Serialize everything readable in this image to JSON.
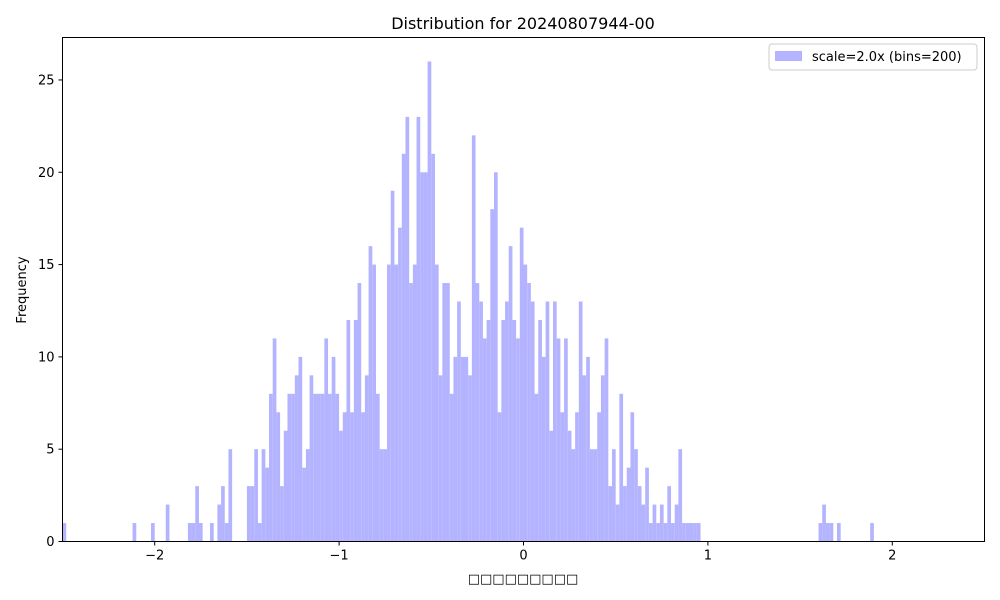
{
  "chart_data": {
    "type": "bar",
    "title": "Distribution for 20240807944-00",
    "xlabel": "□□□□□□□□□",
    "ylabel": "Frequency",
    "xlim": [
      -2.5,
      2.5
    ],
    "ylim": [
      0,
      27.3
    ],
    "x_ticks": [
      -2,
      -1,
      0,
      1,
      2
    ],
    "x_tick_labels": [
      "−2",
      "−1",
      "0",
      "1",
      "2"
    ],
    "y_ticks": [
      0,
      5,
      10,
      15,
      20,
      25
    ],
    "y_tick_labels": [
      "0",
      "5",
      "10",
      "15",
      "20",
      "25"
    ],
    "bar_color": "#b3b3ff",
    "grid": false,
    "legend_position": "top-right",
    "series": [
      {
        "name": "scale=2.0x (bins=200)",
        "bin_width": 0.02,
        "bins": [
          [
            -2.5,
            1
          ],
          [
            -2.12,
            1
          ],
          [
            -2.02,
            1
          ],
          [
            -1.94,
            2
          ],
          [
            -1.82,
            1
          ],
          [
            -1.8,
            1
          ],
          [
            -1.78,
            3
          ],
          [
            -1.76,
            1
          ],
          [
            -1.7,
            1
          ],
          [
            -1.66,
            2
          ],
          [
            -1.64,
            3
          ],
          [
            -1.62,
            1
          ],
          [
            -1.6,
            5
          ],
          [
            -1.5,
            3
          ],
          [
            -1.48,
            3
          ],
          [
            -1.46,
            5
          ],
          [
            -1.44,
            1
          ],
          [
            -1.42,
            5
          ],
          [
            -1.4,
            4
          ],
          [
            -1.38,
            8
          ],
          [
            -1.36,
            11
          ],
          [
            -1.34,
            7
          ],
          [
            -1.32,
            3
          ],
          [
            -1.3,
            6
          ],
          [
            -1.28,
            8
          ],
          [
            -1.26,
            8
          ],
          [
            -1.24,
            9
          ],
          [
            -1.22,
            10
          ],
          [
            -1.2,
            4
          ],
          [
            -1.18,
            5
          ],
          [
            -1.16,
            9
          ],
          [
            -1.14,
            8
          ],
          [
            -1.12,
            8
          ],
          [
            -1.1,
            8
          ],
          [
            -1.08,
            11
          ],
          [
            -1.06,
            8
          ],
          [
            -1.04,
            10
          ],
          [
            -1.02,
            8
          ],
          [
            -1.0,
            6
          ],
          [
            -0.98,
            7
          ],
          [
            -0.96,
            12
          ],
          [
            -0.94,
            7
          ],
          [
            -0.92,
            12
          ],
          [
            -0.9,
            14
          ],
          [
            -0.88,
            7
          ],
          [
            -0.86,
            9
          ],
          [
            -0.84,
            16
          ],
          [
            -0.82,
            15
          ],
          [
            -0.8,
            8
          ],
          [
            -0.78,
            5
          ],
          [
            -0.76,
            5
          ],
          [
            -0.74,
            15
          ],
          [
            -0.72,
            19
          ],
          [
            -0.7,
            15
          ],
          [
            -0.68,
            17
          ],
          [
            -0.66,
            21
          ],
          [
            -0.64,
            23
          ],
          [
            -0.62,
            14
          ],
          [
            -0.6,
            15
          ],
          [
            -0.58,
            23
          ],
          [
            -0.56,
            20
          ],
          [
            -0.54,
            20
          ],
          [
            -0.52,
            26
          ],
          [
            -0.5,
            21
          ],
          [
            -0.48,
            15
          ],
          [
            -0.46,
            9
          ],
          [
            -0.44,
            14
          ],
          [
            -0.42,
            14
          ],
          [
            -0.4,
            8
          ],
          [
            -0.38,
            10
          ],
          [
            -0.36,
            13
          ],
          [
            -0.34,
            10
          ],
          [
            -0.32,
            10
          ],
          [
            -0.3,
            9
          ],
          [
            -0.28,
            22
          ],
          [
            -0.26,
            14
          ],
          [
            -0.24,
            13
          ],
          [
            -0.22,
            11
          ],
          [
            -0.2,
            12
          ],
          [
            -0.18,
            18
          ],
          [
            -0.16,
            20
          ],
          [
            -0.14,
            7
          ],
          [
            -0.12,
            12
          ],
          [
            -0.1,
            13
          ],
          [
            -0.08,
            16
          ],
          [
            -0.06,
            12
          ],
          [
            -0.04,
            11
          ],
          [
            -0.02,
            17
          ],
          [
            0.0,
            15
          ],
          [
            0.02,
            14
          ],
          [
            0.04,
            13
          ],
          [
            0.06,
            8
          ],
          [
            0.08,
            12
          ],
          [
            0.1,
            10
          ],
          [
            0.12,
            13
          ],
          [
            0.14,
            6
          ],
          [
            0.16,
            13
          ],
          [
            0.18,
            11
          ],
          [
            0.2,
            7
          ],
          [
            0.22,
            11
          ],
          [
            0.24,
            6
          ],
          [
            0.26,
            5
          ],
          [
            0.28,
            7
          ],
          [
            0.3,
            13
          ],
          [
            0.32,
            9
          ],
          [
            0.34,
            10
          ],
          [
            0.36,
            5
          ],
          [
            0.38,
            5
          ],
          [
            0.4,
            7
          ],
          [
            0.42,
            9
          ],
          [
            0.44,
            11
          ],
          [
            0.46,
            3
          ],
          [
            0.48,
            5
          ],
          [
            0.5,
            2
          ],
          [
            0.52,
            8
          ],
          [
            0.54,
            3
          ],
          [
            0.56,
            4
          ],
          [
            0.58,
            7
          ],
          [
            0.6,
            5
          ],
          [
            0.62,
            3
          ],
          [
            0.64,
            2
          ],
          [
            0.66,
            4
          ],
          [
            0.68,
            1
          ],
          [
            0.7,
            2
          ],
          [
            0.72,
            1
          ],
          [
            0.74,
            2
          ],
          [
            0.76,
            1
          ],
          [
            0.78,
            3
          ],
          [
            0.8,
            1
          ],
          [
            0.82,
            2
          ],
          [
            0.84,
            5
          ],
          [
            0.86,
            1
          ],
          [
            0.88,
            1
          ],
          [
            0.9,
            1
          ],
          [
            0.92,
            1
          ],
          [
            0.94,
            1
          ],
          [
            1.6,
            1
          ],
          [
            1.62,
            2
          ],
          [
            1.64,
            1
          ],
          [
            1.66,
            1
          ],
          [
            1.7,
            1
          ],
          [
            1.88,
            1
          ]
        ]
      }
    ]
  }
}
